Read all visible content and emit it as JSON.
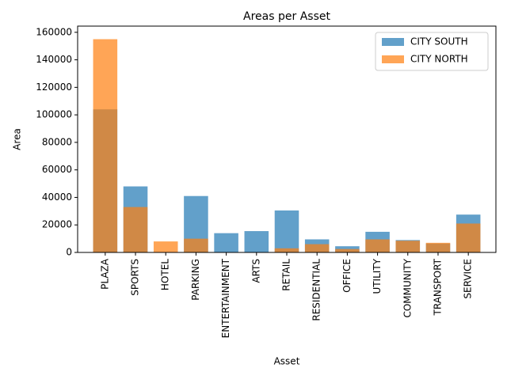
{
  "chart_data": {
    "type": "bar",
    "title": "Areas per Asset",
    "x_label": "Asset",
    "y_label": "Area",
    "categories": [
      "PLAZA",
      "SPORTS",
      "HOTEL",
      "PARKING",
      "ENTERTAINMENT",
      "ARTS",
      "RETAIL",
      "RESIDENTIAL",
      "OFFICE",
      "UTILITY",
      "COMMUNITY",
      "TRANSPORT",
      "SERVICE"
    ],
    "series": [
      {
        "name": "CITY SOUTH",
        "color": "#1f77b4",
        "values": [
          104000,
          48000,
          0,
          41000,
          14000,
          15500,
          30500,
          9500,
          4500,
          15000,
          9000,
          6500,
          27500
        ]
      },
      {
        "name": "CITY NORTH",
        "color": "#ff7f0e",
        "values": [
          155000,
          33000,
          8000,
          10000,
          0,
          0,
          3000,
          6000,
          2500,
          9500,
          8500,
          7000,
          21000
        ]
      }
    ],
    "ylim": [
      0,
      164500
    ],
    "yticks": [
      0,
      20000,
      40000,
      60000,
      80000,
      100000,
      120000,
      140000,
      160000
    ],
    "legend": "upper right"
  }
}
